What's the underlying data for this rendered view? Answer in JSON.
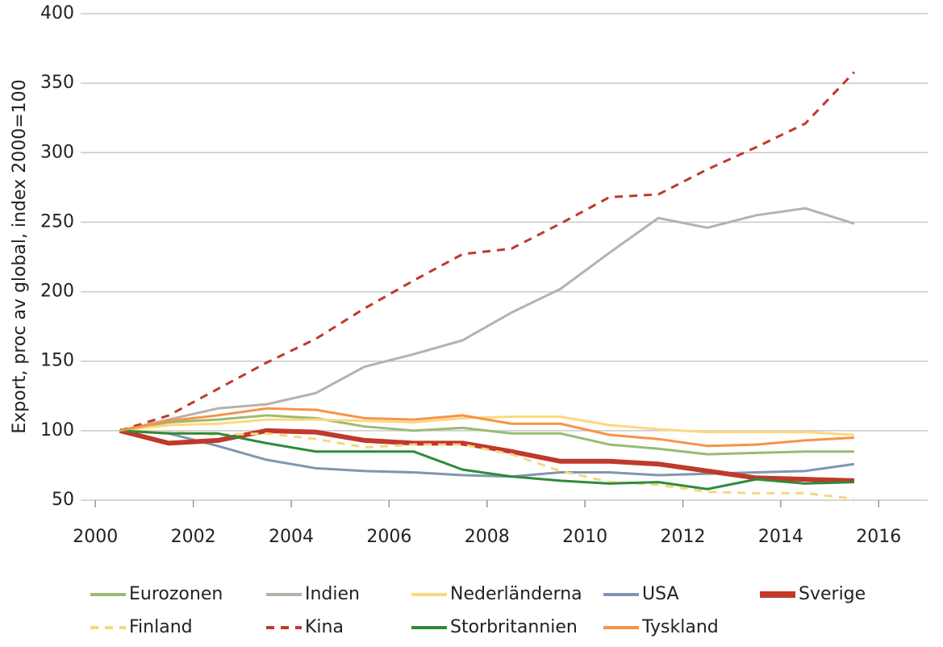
{
  "chart_data": {
    "type": "line",
    "ylabel": "Export, proc av global, index 2000=100",
    "x": [
      2000.5,
      2001.5,
      2002.5,
      2003.5,
      2004.5,
      2005.5,
      2006.5,
      2007.5,
      2008.5,
      2009.5,
      2010.5,
      2011.5,
      2012.5,
      2013.5,
      2014.5,
      2015.5
    ],
    "xlim": [
      1999.7,
      2017
    ],
    "xticks": [
      2000,
      2002,
      2004,
      2006,
      2008,
      2010,
      2012,
      2014,
      2016
    ],
    "ylim": [
      50,
      400
    ],
    "yticks": [
      50,
      100,
      150,
      200,
      250,
      300,
      350,
      400
    ],
    "grid": true,
    "legend": "bottom",
    "series": [
      {
        "name": "Eurozonen",
        "color": "#9bbb72",
        "linewidth": 3,
        "values": [
          100,
          106,
          108,
          111,
          109,
          103,
          100,
          102,
          98,
          98,
          90,
          87,
          83,
          84,
          85,
          85
        ]
      },
      {
        "name": "Indien",
        "color": "#b8b1aa",
        "linewidth": 3,
        "values": [
          100,
          108,
          116,
          119,
          127,
          146,
          155,
          165,
          185,
          202,
          228,
          253,
          246,
          255,
          260,
          249
        ]
      },
      {
        "name": "Nederländerna",
        "color": "#fcd87e",
        "linewidth": 3,
        "values": [
          100,
          104,
          105,
          108,
          108,
          107,
          106,
          109,
          110,
          110,
          104,
          101,
          99,
          99,
          99,
          97
        ]
      },
      {
        "name": "USA",
        "color": "#8096b0",
        "linewidth": 3,
        "values": [
          100,
          98,
          89,
          79,
          73,
          71,
          70,
          68,
          67,
          70,
          70,
          68,
          69,
          70,
          71,
          76
        ]
      },
      {
        "name": "Sverige",
        "color": "#c0392b",
        "linewidth": 6,
        "values": [
          100,
          91,
          93,
          100,
          99,
          93,
          91,
          91,
          85,
          78,
          78,
          76,
          71,
          66,
          65,
          64
        ]
      },
      {
        "name": "Finland",
        "color": "#f6d77e",
        "linewidth": 3,
        "style": "dashed",
        "values": [
          100,
          99,
          97,
          98,
          94,
          88,
          90,
          90,
          83,
          71,
          63,
          61,
          56,
          55,
          55,
          51
        ]
      },
      {
        "name": "Kina",
        "color": "#c0392b",
        "linewidth": 3,
        "style": "dashed",
        "values": [
          100,
          111,
          130,
          149,
          166,
          188,
          208,
          227,
          231,
          249,
          268,
          270,
          288,
          304,
          321,
          358
        ]
      },
      {
        "name": "Storbritannien",
        "color": "#2e8b3b",
        "linewidth": 3,
        "values": [
          100,
          98,
          98,
          91,
          85,
          85,
          85,
          72,
          67,
          64,
          62,
          63,
          58,
          65,
          62,
          63
        ]
      },
      {
        "name": "Tyskland",
        "color": "#f79346",
        "linewidth": 3,
        "values": [
          100,
          107,
          111,
          116,
          115,
          109,
          108,
          111,
          105,
          105,
          97,
          94,
          89,
          90,
          93,
          95
        ]
      }
    ]
  }
}
